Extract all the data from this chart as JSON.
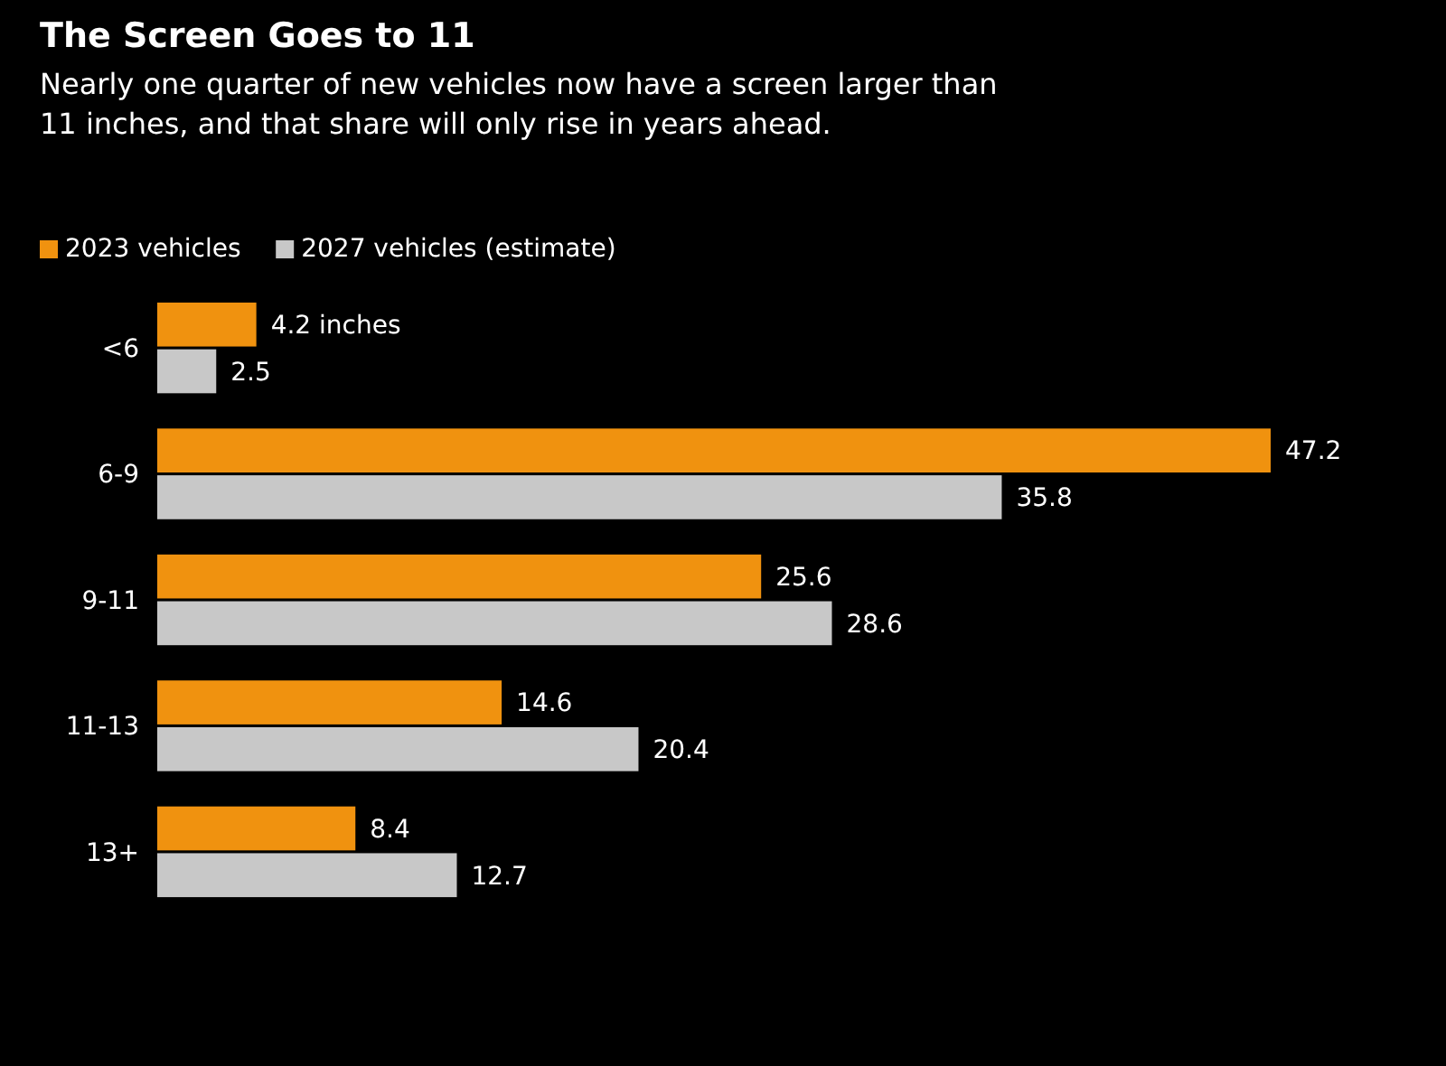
{
  "chart_data": {
    "type": "bar",
    "orientation": "horizontal",
    "title": "The Screen Goes to 11",
    "subtitle": "Nearly one quarter of new vehicles now have a screen larger than 11 inches, and that share will only rise in years ahead.",
    "categories": [
      "<6",
      "6-9",
      "9-11",
      "11-13",
      "13+"
    ],
    "series": [
      {
        "name": "2023 vehicles",
        "color": "#f0920f",
        "values": [
          4.2,
          47.2,
          25.6,
          14.6,
          8.4
        ],
        "value_labels": [
          "4.2 inches",
          "47.2",
          "25.6",
          "14.6",
          "8.4"
        ]
      },
      {
        "name": "2027 vehicles (estimate)",
        "color": "#c8c8c8",
        "values": [
          2.5,
          35.8,
          28.6,
          20.4,
          12.7
        ],
        "value_labels": [
          "2.5",
          "35.8",
          "28.6",
          "20.4",
          "12.7"
        ]
      }
    ],
    "legend": "top left"
  }
}
